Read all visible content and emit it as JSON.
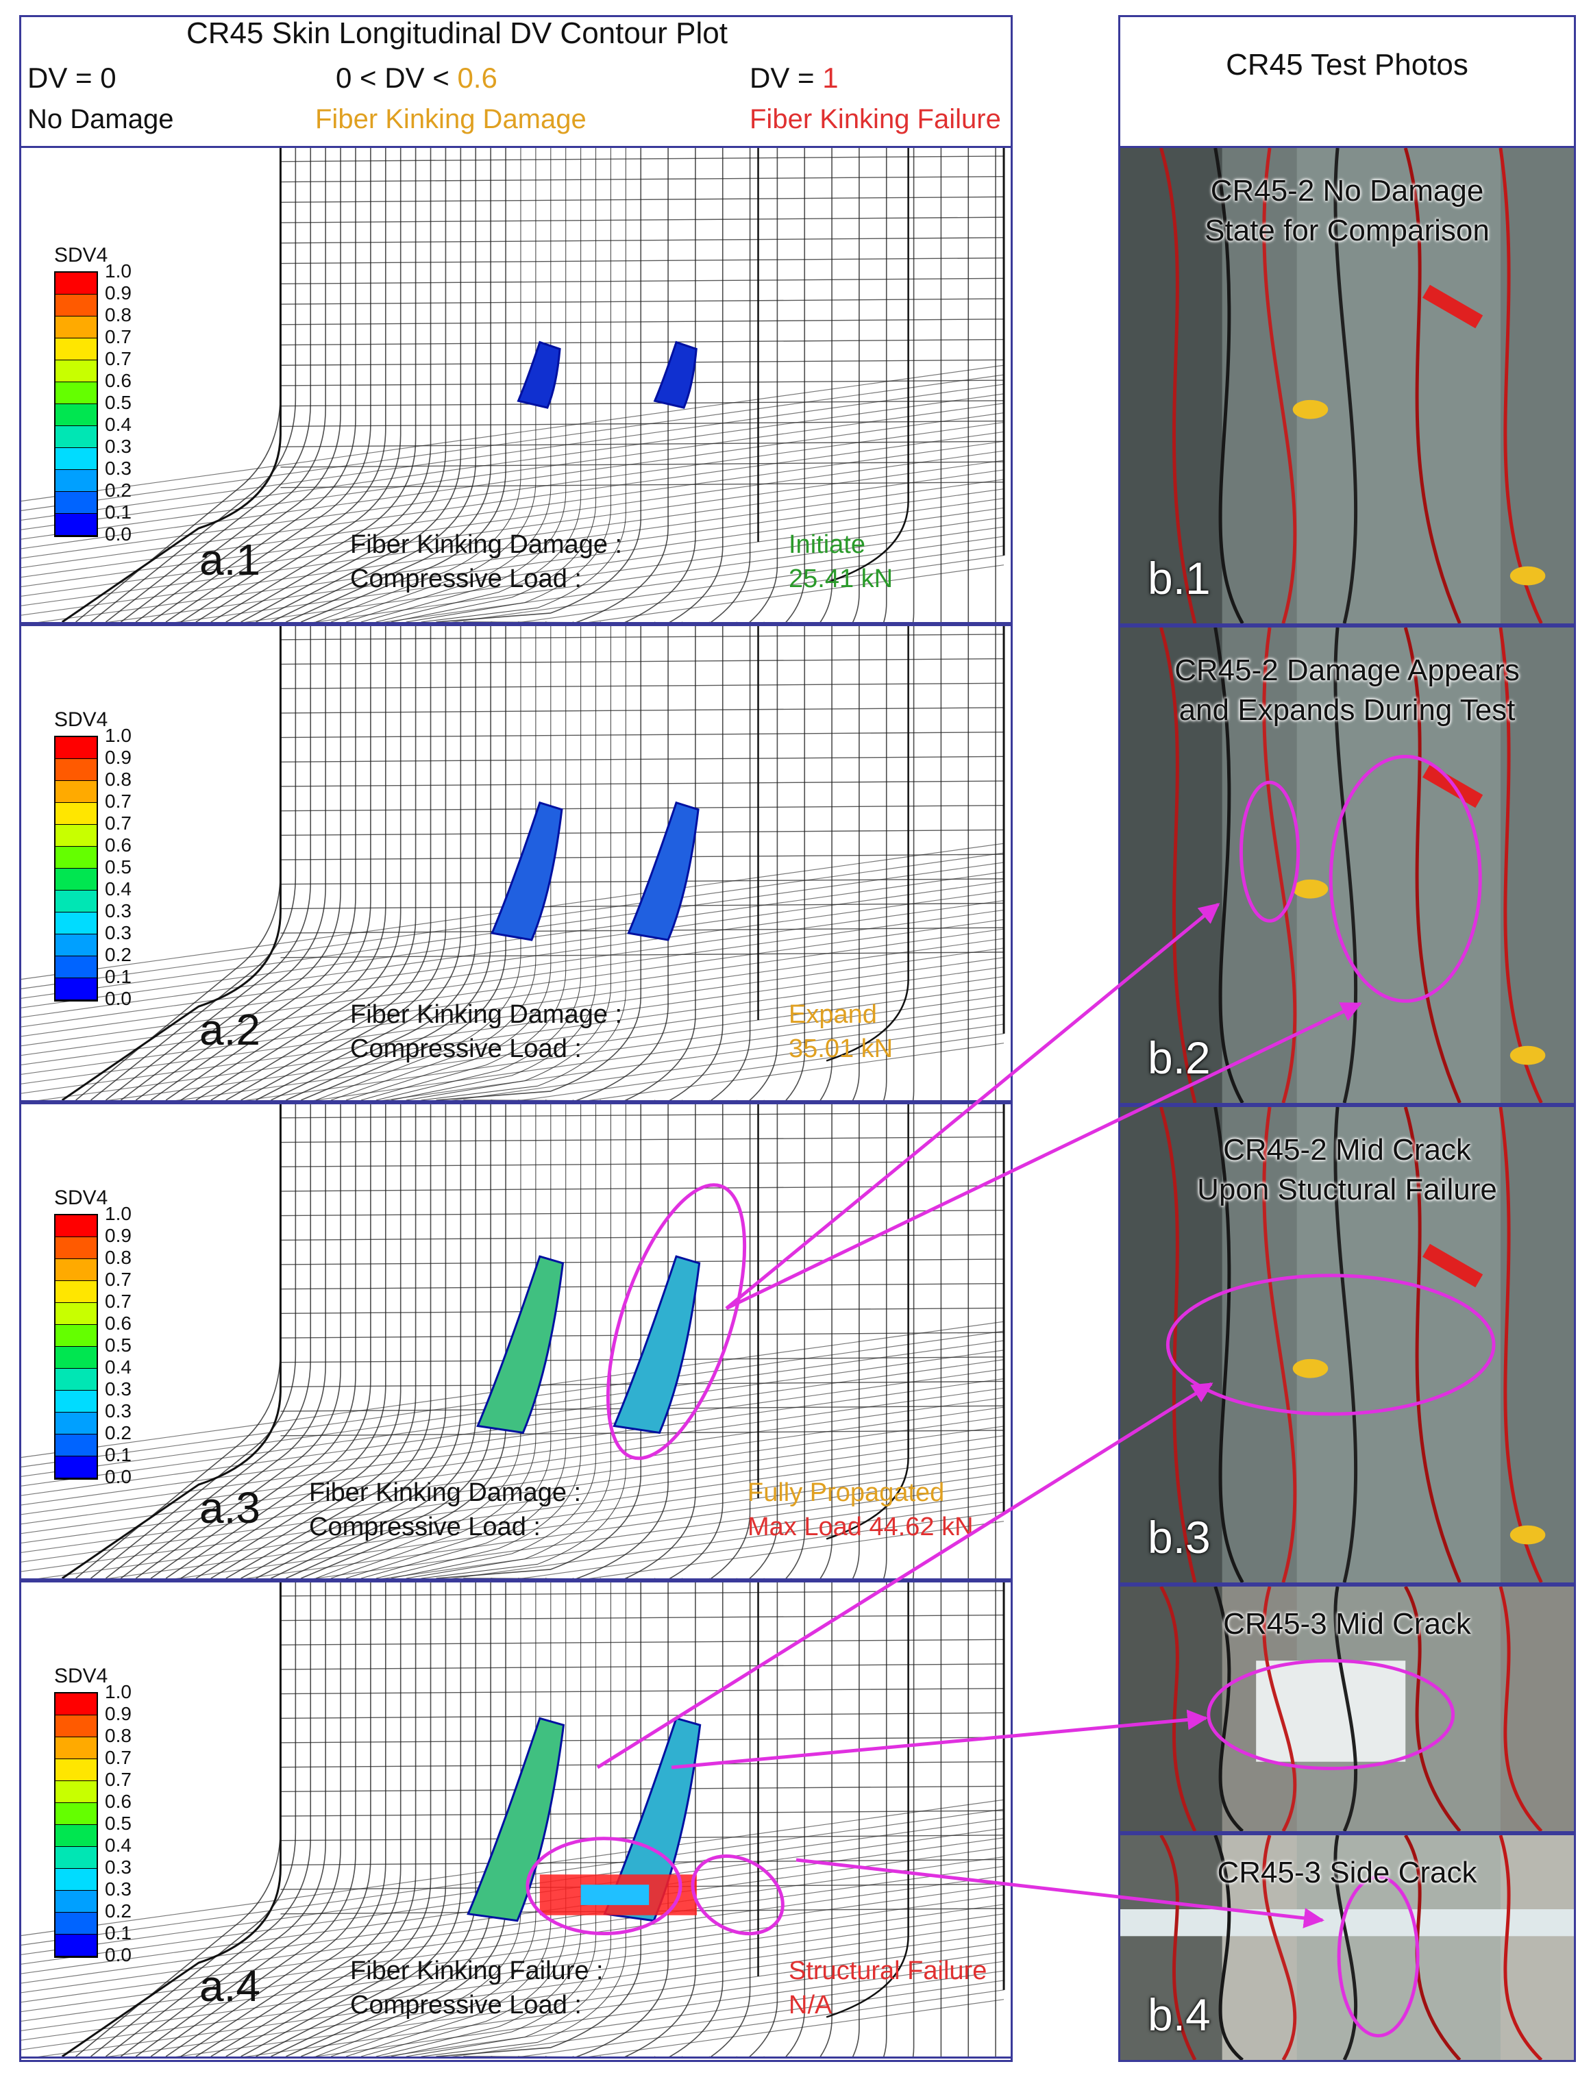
{
  "header": {
    "title": "CR45 Skin Longitudinal DV Contour Plot",
    "dv0": "DV = 0",
    "dv_mid_prefix": "0 < DV < ",
    "dv_mid_value": "0.6",
    "dv1_prefix": "DV = ",
    "dv1_value": "1",
    "no_damage": "No Damage",
    "damage": "Fiber Kinking Damage",
    "failure": "Fiber Kinking Failure"
  },
  "colors": {
    "frame": "#3a3a9a",
    "orange_text": "#e0a020",
    "red_text": "#e03030",
    "green_text": "#2a9a2a",
    "magenta": "#e030e0"
  },
  "legend": {
    "title": "SDV4",
    "ticks": [
      "1.0",
      "0.9",
      "0.8",
      "0.7",
      "0.7",
      "0.6",
      "0.5",
      "0.4",
      "0.3",
      "0.3",
      "0.2",
      "0.1",
      "0.0"
    ],
    "colors": [
      "#ff0000",
      "#ff5a00",
      "#ffaa00",
      "#ffe600",
      "#c8ff00",
      "#64ff00",
      "#00e650",
      "#00e6b4",
      "#00dcff",
      "#00a0ff",
      "#0064ff",
      "#0000ff"
    ]
  },
  "panels": [
    {
      "label": "a.1",
      "line1": "Fiber Kinking Damage :",
      "line2": "Compressive Load :",
      "status": "Initiate",
      "load": "25.41 kN",
      "status_color": "#2a9a2a",
      "load_color": "#2a9a2a"
    },
    {
      "label": "a.2",
      "line1": "Fiber Kinking Damage :",
      "line2": "Compressive Load :",
      "status": "Expand",
      "load": "35.01 kN",
      "status_color": "#e0a020",
      "load_color": "#e0a020"
    },
    {
      "label": "a.3",
      "line1": "Fiber Kinking Damage :",
      "line2": "Compressive Load :",
      "status": "Fully Propagated",
      "load": "Max Load  44.62 kN",
      "status_color": "#e0a020",
      "load_color": "#e03030"
    },
    {
      "label": "a.4",
      "line1": "Fiber Kinking Failure :",
      "line2": "Compressive Load :",
      "status": "Structural Failure",
      "load": "N/A",
      "status_color": "#e03030",
      "load_color": "#e03030"
    }
  ],
  "photos": {
    "header": "CR45 Test Photos",
    "items": [
      {
        "label": "b.1",
        "title_line1": "CR45-2 No Damage",
        "title_line2": "State for Comparison"
      },
      {
        "label": "b.2",
        "title_line1": "CR45-2 Damage  Appears",
        "title_line2": "and Expands During Test"
      },
      {
        "label": "b.3",
        "title_line1": "CR45-2 Mid Crack",
        "title_line2": "Upon Stuctural Failure"
      },
      {
        "label": "",
        "title_line1": "CR45-3 Mid Crack",
        "title_line2": ""
      },
      {
        "label": "b.4",
        "title_line1": "CR45-3 Side Crack",
        "title_line2": ""
      }
    ]
  }
}
